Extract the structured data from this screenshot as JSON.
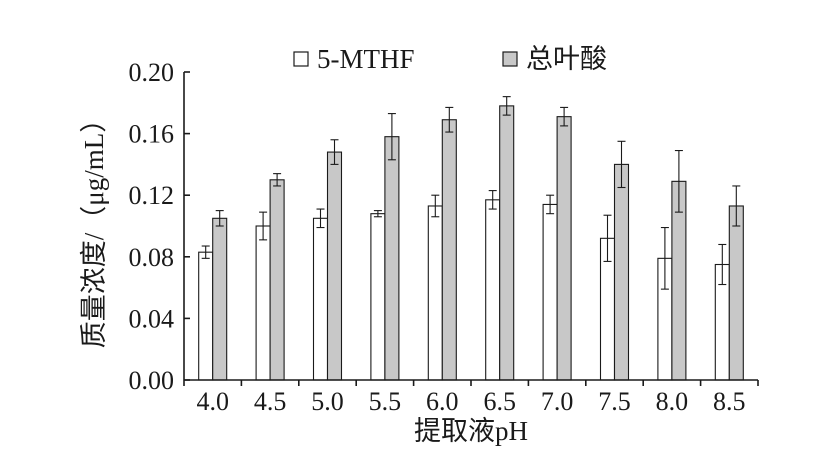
{
  "chart_data": {
    "type": "bar",
    "categories": [
      "4.0",
      "4.5",
      "5.0",
      "5.5",
      "6.0",
      "6.5",
      "7.0",
      "7.5",
      "8.0",
      "8.5"
    ],
    "series": [
      {
        "name": "5-MTHF",
        "color": "#ffffff",
        "values": [
          0.083,
          0.1,
          0.105,
          0.108,
          0.113,
          0.117,
          0.114,
          0.092,
          0.079,
          0.075
        ],
        "errors": [
          0.004,
          0.009,
          0.006,
          0.002,
          0.007,
          0.006,
          0.006,
          0.015,
          0.02,
          0.013
        ]
      },
      {
        "name": "总叶酸",
        "color": "#c8c8c8",
        "values": [
          0.105,
          0.13,
          0.148,
          0.158,
          0.169,
          0.178,
          0.171,
          0.14,
          0.129,
          0.113
        ],
        "errors": [
          0.005,
          0.004,
          0.008,
          0.015,
          0.008,
          0.006,
          0.006,
          0.015,
          0.02,
          0.013
        ]
      }
    ],
    "xlabel": "提取液pH",
    "ylabel": "质量浓度/（μg/mL）",
    "ylim": [
      0.0,
      0.2
    ],
    "yticks": [
      "0.00",
      "0.04",
      "0.08",
      "0.12",
      "0.16",
      "0.20"
    ],
    "legend_position": "top",
    "grid": false
  }
}
